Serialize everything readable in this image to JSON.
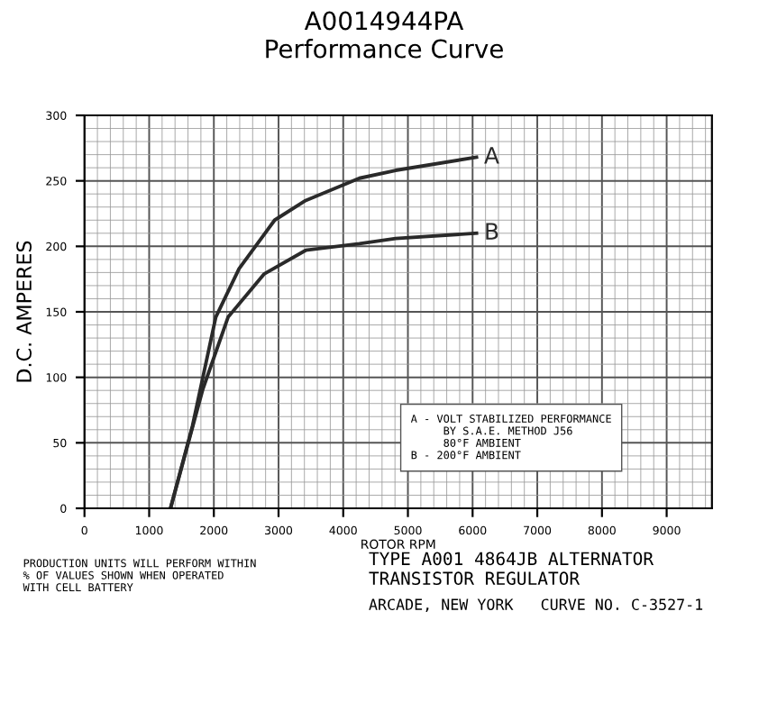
{
  "chart_data": {
    "type": "line",
    "title": "A0014944PA\nPerformance Curve",
    "ylabel": "D.C. AMPERES",
    "xlabel": "ROTOR RPM",
    "xlim": [
      0,
      9700
    ],
    "xticks": [
      0,
      1000,
      2000,
      3000,
      4000,
      5000,
      6000,
      7000,
      8000,
      9000
    ],
    "ylim": [
      0,
      300
    ],
    "yticks": [
      0,
      50,
      100,
      150,
      200,
      250,
      300
    ],
    "grid": true,
    "series": [
      {
        "name": "A",
        "color": "#2a2a2a",
        "x": [
          1330,
          1670,
          2030,
          2390,
          2940,
          3420,
          4250,
          4810,
          6060
        ],
        "values": [
          0,
          63,
          146,
          183,
          220,
          235,
          252,
          258,
          268
        ]
      },
      {
        "name": "B",
        "color": "#2a2a2a",
        "x": [
          1330,
          1830,
          2220,
          2780,
          3420,
          4250,
          4810,
          6060
        ],
        "values": [
          0,
          91,
          146,
          179,
          197,
          202,
          206,
          210
        ]
      }
    ],
    "annotations": [
      "A - VOLT STABILIZED PERFORMANCE\n     BY S.A.E. METHOD J56\n     80°F AMBIENT\nB - 200°F AMBIENT",
      "PRODUCTION UNITS WILL PERFORM WITHIN\n% OF VALUES SHOWN WHEN OPERATED\nWITH CELL BATTERY",
      "TYPE A001 4864JB ALTERNATOR\nTRANSISTOR REGULATOR",
      "ARCADE, NEW YORK   CURVE NO. C-3527-1"
    ]
  }
}
